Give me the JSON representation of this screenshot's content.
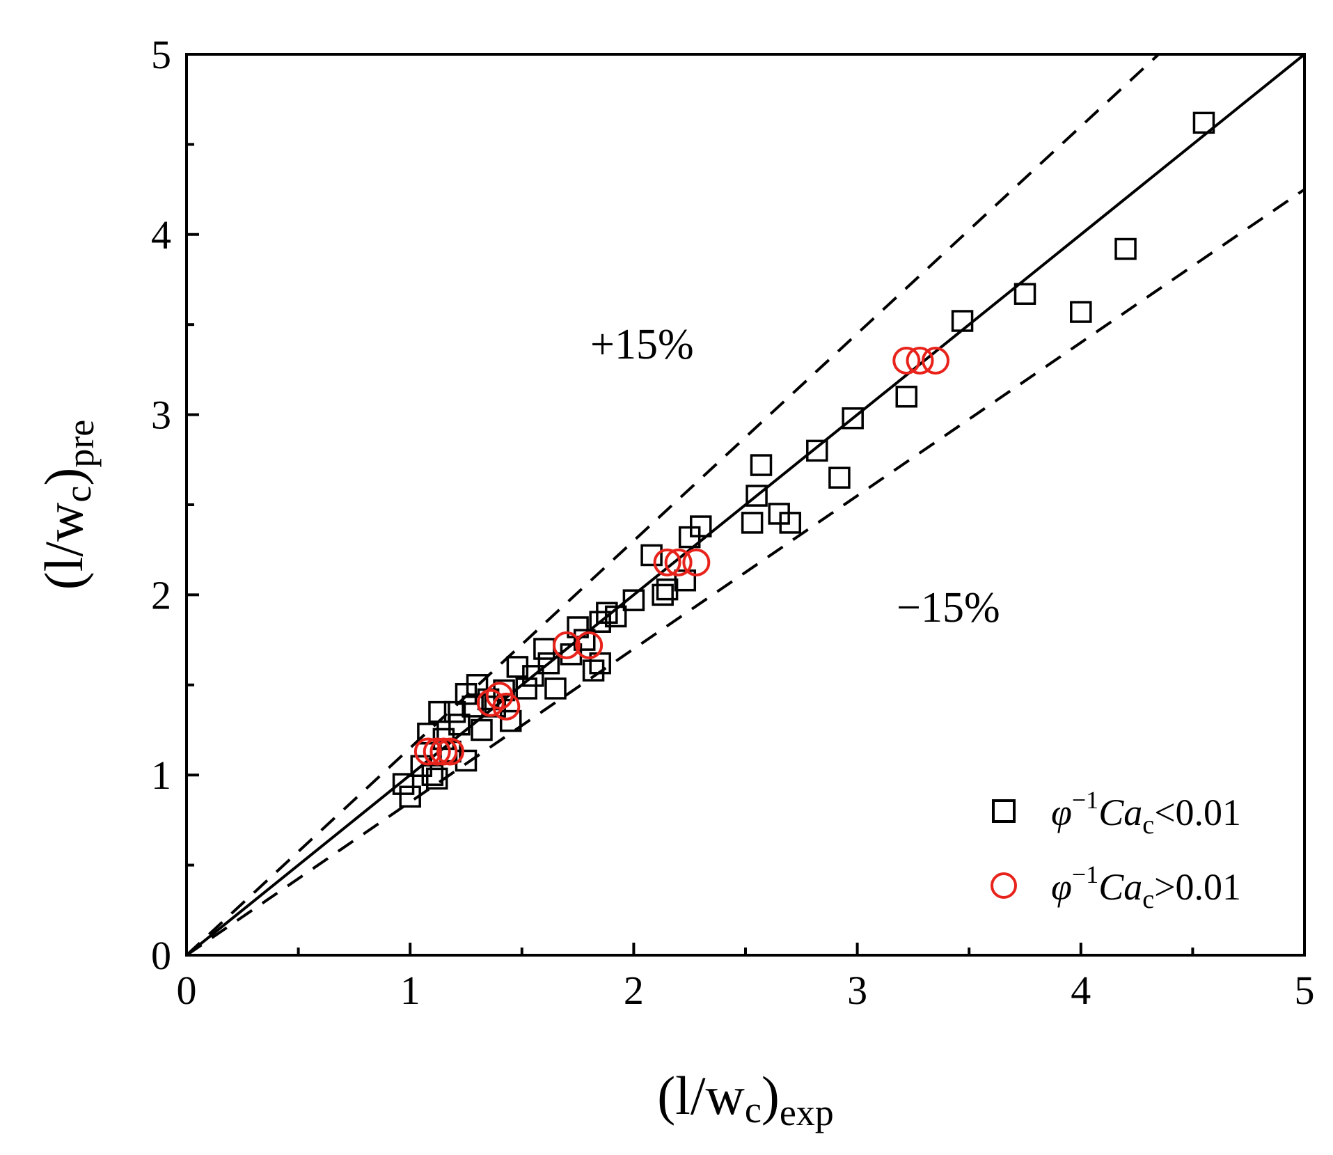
{
  "chart_data": {
    "type": "scatter",
    "xlabel": {
      "main": "(l/w",
      "sub_c": "c",
      "close": ")",
      "sub": "exp"
    },
    "ylabel": {
      "main": "(l/w",
      "sub_c": "c",
      "close": ")",
      "sub": "pre"
    },
    "xlim": [
      0,
      5
    ],
    "ylim": [
      0,
      5
    ],
    "xticks": [
      "0",
      "1",
      "2",
      "3",
      "4",
      "5"
    ],
    "yticks": [
      "0",
      "1",
      "2",
      "3",
      "4",
      "5"
    ],
    "reference_lines": [
      {
        "name": "parity",
        "slope": 1.0,
        "style": "solid"
      },
      {
        "name": "+15%",
        "slope": 1.15,
        "style": "dashed"
      },
      {
        "name": "-15%",
        "slope": 0.85,
        "style": "dashed"
      }
    ],
    "annotations": {
      "plus": "+15%",
      "minus": "−15%"
    },
    "legend_position": "bottom-right",
    "series": [
      {
        "name": "φ⁻¹Ca_c<0.01",
        "legend": {
          "phi": "φ",
          "sup": "−1",
          "ca": "Ca",
          "sub": "c",
          "rest": "<0.01"
        },
        "marker": "square",
        "color": "#000000",
        "points": [
          [
            0.97,
            0.95
          ],
          [
            1.0,
            0.88
          ],
          [
            1.05,
            1.05
          ],
          [
            1.08,
            1.23
          ],
          [
            1.1,
            1.0
          ],
          [
            1.12,
            0.98
          ],
          [
            1.13,
            1.35
          ],
          [
            1.15,
            1.2
          ],
          [
            1.18,
            1.13
          ],
          [
            1.2,
            1.35
          ],
          [
            1.22,
            1.28
          ],
          [
            1.25,
            1.08
          ],
          [
            1.25,
            1.45
          ],
          [
            1.28,
            1.38
          ],
          [
            1.3,
            1.5
          ],
          [
            1.32,
            1.25
          ],
          [
            1.35,
            1.42
          ],
          [
            1.38,
            1.38
          ],
          [
            1.42,
            1.47
          ],
          [
            1.45,
            1.3
          ],
          [
            1.48,
            1.6
          ],
          [
            1.52,
            1.48
          ],
          [
            1.55,
            1.55
          ],
          [
            1.6,
            1.7
          ],
          [
            1.62,
            1.62
          ],
          [
            1.65,
            1.48
          ],
          [
            1.72,
            1.67
          ],
          [
            1.75,
            1.82
          ],
          [
            1.78,
            1.75
          ],
          [
            1.82,
            1.58
          ],
          [
            1.85,
            1.85
          ],
          [
            1.85,
            1.62
          ],
          [
            1.88,
            1.9
          ],
          [
            1.92,
            1.88
          ],
          [
            2.0,
            1.97
          ],
          [
            2.08,
            2.22
          ],
          [
            2.13,
            2.0
          ],
          [
            2.15,
            2.03
          ],
          [
            2.23,
            2.08
          ],
          [
            2.25,
            2.32
          ],
          [
            2.3,
            2.38
          ],
          [
            2.53,
            2.4
          ],
          [
            2.55,
            2.55
          ],
          [
            2.57,
            2.72
          ],
          [
            2.65,
            2.45
          ],
          [
            2.7,
            2.4
          ],
          [
            2.82,
            2.8
          ],
          [
            2.92,
            2.65
          ],
          [
            2.98,
            2.98
          ],
          [
            3.22,
            3.1
          ],
          [
            3.47,
            3.52
          ],
          [
            3.75,
            3.67
          ],
          [
            4.0,
            3.57
          ],
          [
            4.2,
            3.92
          ],
          [
            4.55,
            4.62
          ]
        ]
      },
      {
        "name": "φ⁻¹Ca_c>0.01",
        "legend": {
          "phi": "φ",
          "sup": "−1",
          "ca": "Ca",
          "sub": "c",
          "rest": ">0.01"
        },
        "marker": "circle",
        "color": "#e8231b",
        "points": [
          [
            1.08,
            1.13
          ],
          [
            1.12,
            1.13
          ],
          [
            1.15,
            1.13
          ],
          [
            1.18,
            1.13
          ],
          [
            1.36,
            1.4
          ],
          [
            1.4,
            1.44
          ],
          [
            1.43,
            1.38
          ],
          [
            1.7,
            1.72
          ],
          [
            1.8,
            1.72
          ],
          [
            2.15,
            2.18
          ],
          [
            2.2,
            2.18
          ],
          [
            2.28,
            2.18
          ],
          [
            3.22,
            3.3
          ],
          [
            3.28,
            3.3
          ],
          [
            3.35,
            3.3
          ]
        ]
      }
    ]
  }
}
